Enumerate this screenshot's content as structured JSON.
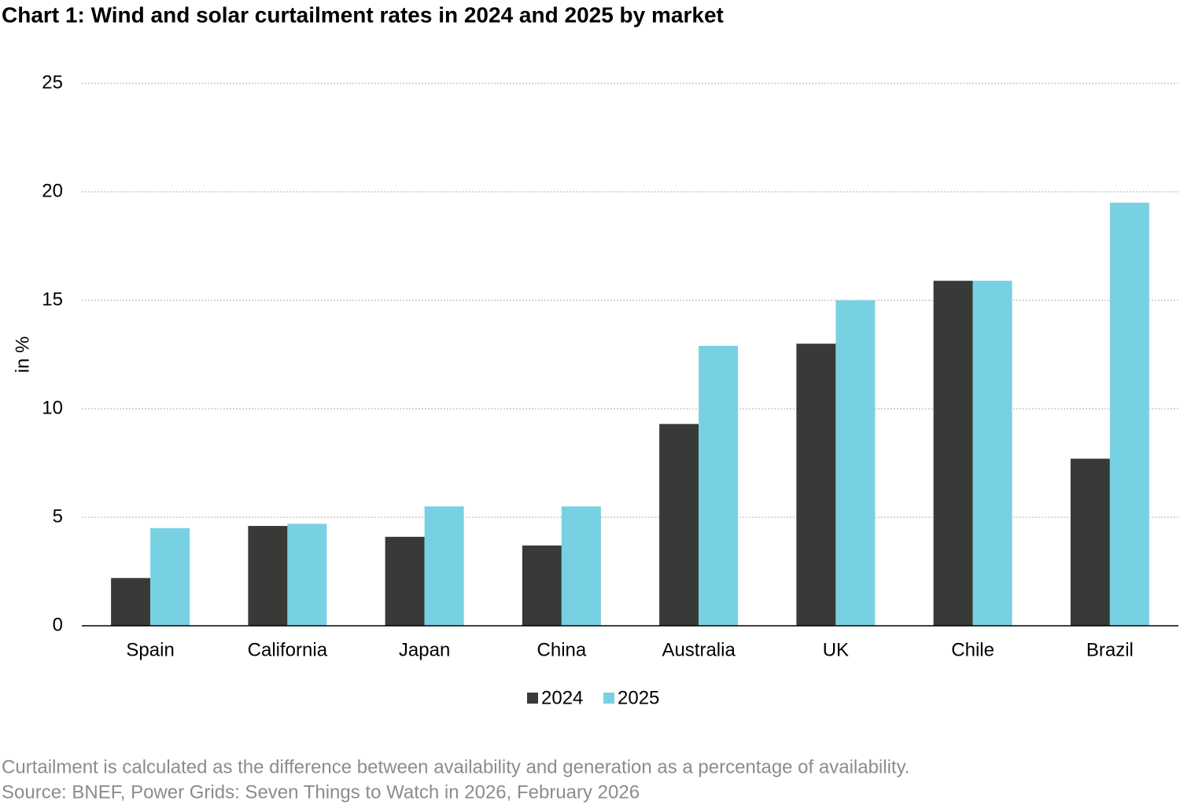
{
  "chart_data": {
    "type": "bar",
    "title": "Chart 1: Wind and solar curtailment rates in 2024 and 2025 by market",
    "y_label": "in %",
    "categories": [
      "Spain",
      "California",
      "Japan",
      "China",
      "Australia",
      "UK",
      "Chile",
      "Brazil"
    ],
    "series": [
      {
        "name": "2024",
        "color": "#383a37",
        "values": [
          2.2,
          4.6,
          4.1,
          3.7,
          9.3,
          13.0,
          15.9,
          7.7
        ]
      },
      {
        "name": "2025",
        "color": "#78d1e3",
        "values": [
          4.5,
          4.7,
          5.5,
          5.5,
          12.9,
          15.0,
          15.9,
          19.5
        ]
      }
    ],
    "ylim": [
      0,
      25
    ],
    "yticks": [
      0,
      5,
      10,
      15,
      20,
      25
    ],
    "grid": true,
    "legend": "bottom",
    "notes": [
      "Curtailment is calculated as the difference between availability and generation as a percentage of availability.",
      "Source: BNEF, Power Grids: Seven Things to Watch in 2026, February 2026"
    ]
  }
}
